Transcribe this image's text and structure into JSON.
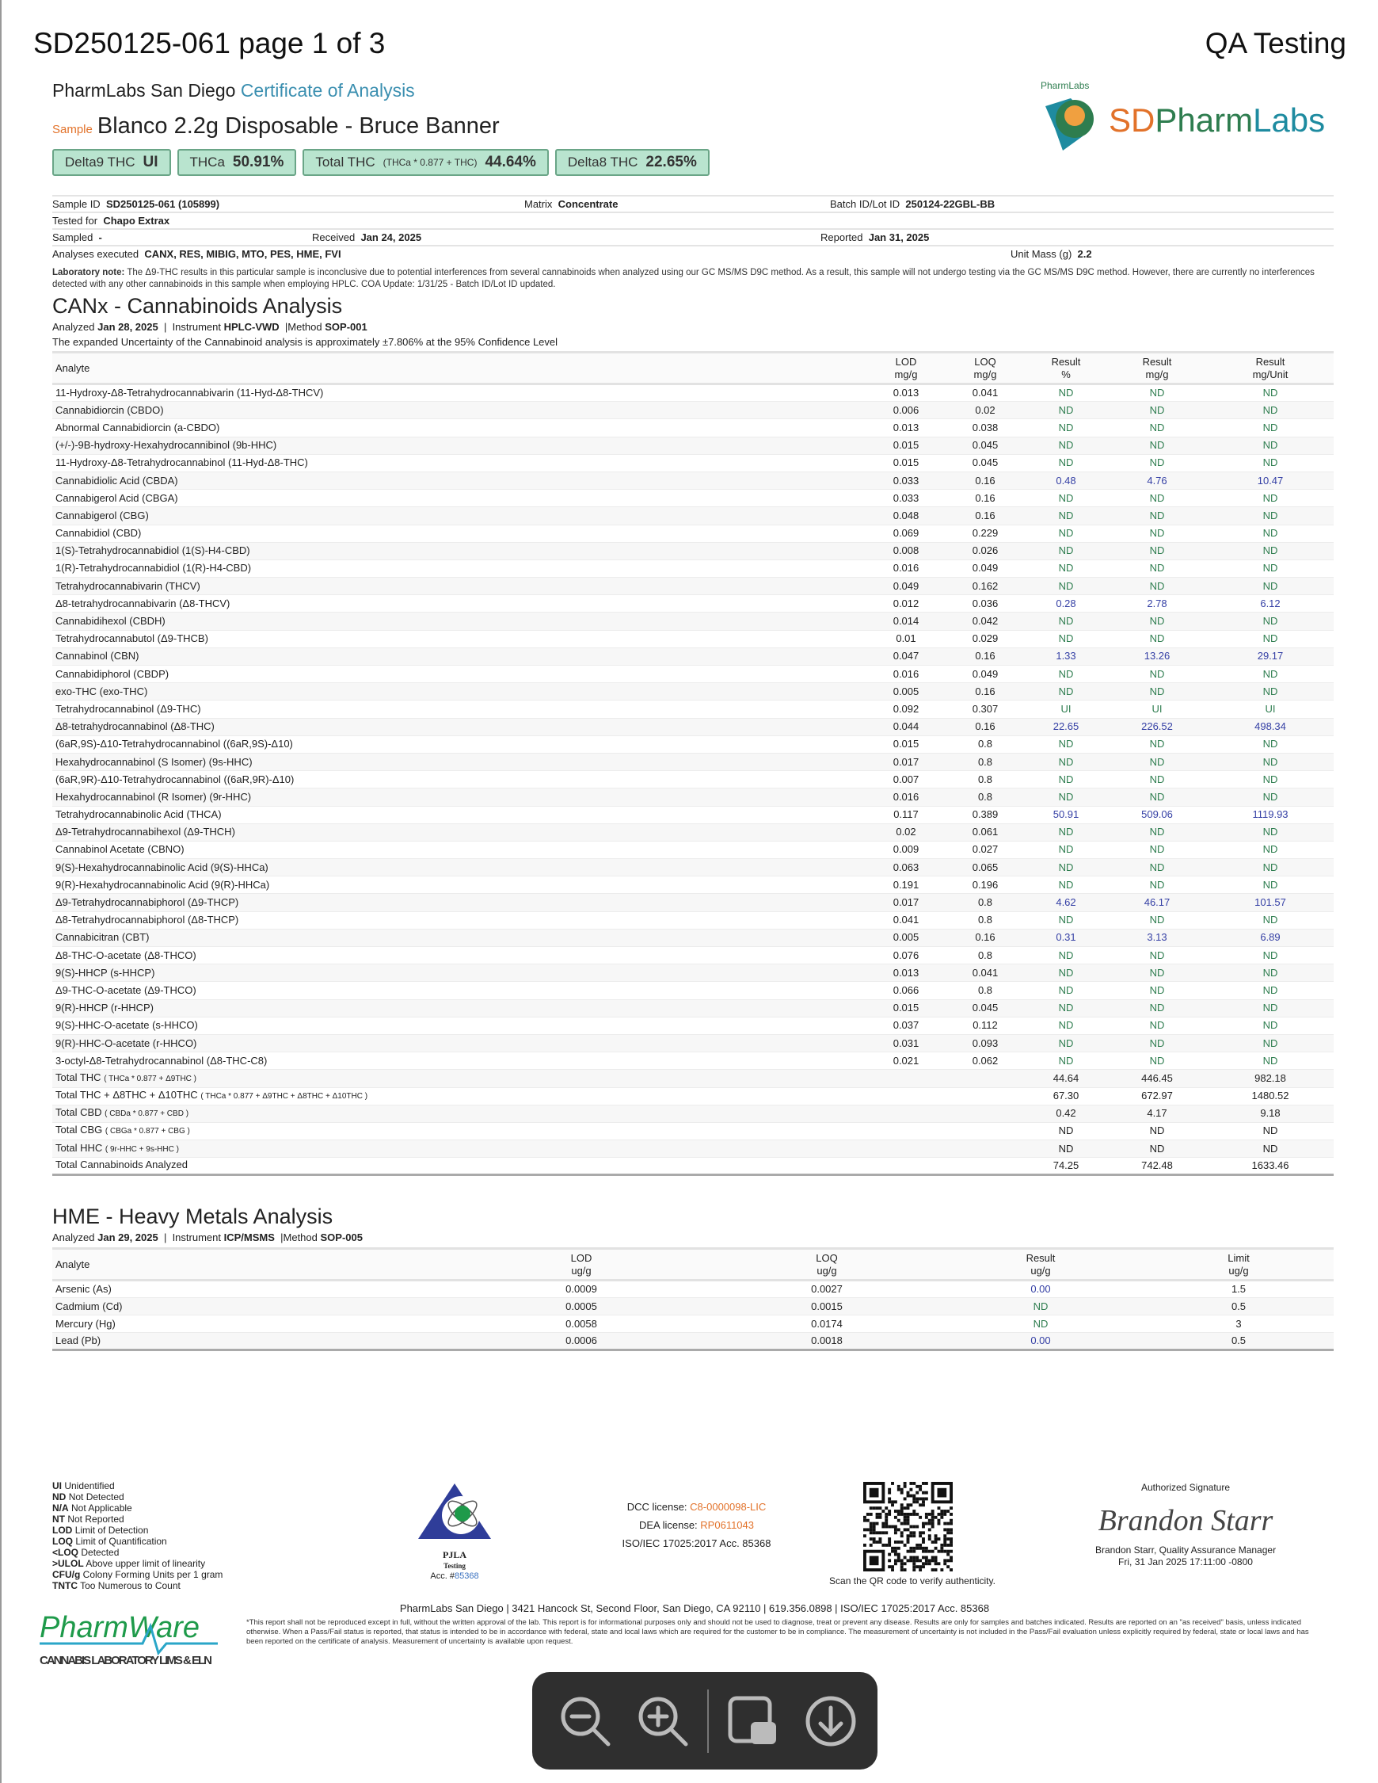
{
  "header": {
    "title": "SD250125-061 page 1 of 3",
    "right": "QA Testing"
  },
  "lab": {
    "name": "PharmLabs San Diego",
    "doc": "Certificate of Analysis",
    "logo_text": "SDPharmLabs",
    "logo_arc": "PharmLabs"
  },
  "sample": {
    "label": "Sample",
    "name": "Blanco 2.2g Disposable - Bruce Banner"
  },
  "badges": [
    {
      "label": "Delta9 THC",
      "formula": "",
      "value": "UI"
    },
    {
      "label": "THCa",
      "formula": "",
      "value": "50.91%"
    },
    {
      "label": "Total THC",
      "formula": "(THCa * 0.877 + THC)",
      "value": "44.64%"
    },
    {
      "label": "Delta8 THC",
      "formula": "",
      "value": "22.65%"
    }
  ],
  "info": {
    "sample_id_label": "Sample ID",
    "sample_id": "SD250125-061 (105899)",
    "matrix_label": "Matrix",
    "matrix": "Concentrate",
    "batch_label": "Batch ID/Lot ID",
    "batch": "250124-22GBL-BB",
    "tested_for_label": "Tested for",
    "tested_for": "Chapo Extrax",
    "sampled_label": "Sampled",
    "sampled": "-",
    "received_label": "Received",
    "received": "Jan 24, 2025",
    "reported_label": "Reported",
    "reported": "Jan 31, 2025",
    "analyses_label": "Analyses executed",
    "analyses": "CANX, RES, MIBIG, MTO, PES, HME, FVI",
    "unit_mass_label": "Unit Mass (g)",
    "unit_mass": "2.2"
  },
  "note": {
    "label": "Laboratory note:",
    "text": "The Δ9-THC results in this particular sample is inconclusive due to potential interferences from several cannabinoids when analyzed using our GC MS/MS D9C method. As a result, this sample will not undergo testing via the GC MS/MS D9C method. However, there are currently no interferences detected with any other cannabinoids in this sample when employing HPLC. COA Update: 1/31/25 - Batch ID/Lot ID updated."
  },
  "canx": {
    "title": "CANx - Cannabinoids Analysis",
    "analyzed_label": "Analyzed",
    "analyzed": "Jan 28, 2025",
    "instrument_label": "Instrument",
    "instrument": "HPLC-VWD",
    "method_label": "Method",
    "method": "SOP-001",
    "uncertainty": "The expanded Uncertainty of the Cannabinoid analysis is approximately ±7.806% at the 95% Confidence Level",
    "columns": [
      "Analyte",
      "LOD\nmg/g",
      "LOQ\nmg/g",
      "Result\n%",
      "Result\nmg/g",
      "Result\nmg/Unit"
    ],
    "rows": [
      [
        "11-Hydroxy-Δ8-Tetrahydrocannabivarin (11-Hyd-Δ8-THCV)",
        "0.013",
        "0.041",
        "ND",
        "ND",
        "ND"
      ],
      [
        "Cannabidiorcin (CBDO)",
        "0.006",
        "0.02",
        "ND",
        "ND",
        "ND"
      ],
      [
        "Abnormal Cannabidiorcin (a-CBDO)",
        "0.013",
        "0.038",
        "ND",
        "ND",
        "ND"
      ],
      [
        "(+/-)-9B-hydroxy-Hexahydrocannibinol (9b-HHC)",
        "0.015",
        "0.045",
        "ND",
        "ND",
        "ND"
      ],
      [
        "11-Hydroxy-Δ8-Tetrahydrocannabinol (11-Hyd-Δ8-THC)",
        "0.015",
        "0.045",
        "ND",
        "ND",
        "ND"
      ],
      [
        "Cannabidiolic Acid (CBDA)",
        "0.033",
        "0.16",
        "0.48",
        "4.76",
        "10.47"
      ],
      [
        "Cannabigerol Acid (CBGA)",
        "0.033",
        "0.16",
        "ND",
        "ND",
        "ND"
      ],
      [
        "Cannabigerol (CBG)",
        "0.048",
        "0.16",
        "ND",
        "ND",
        "ND"
      ],
      [
        "Cannabidiol (CBD)",
        "0.069",
        "0.229",
        "ND",
        "ND",
        "ND"
      ],
      [
        "1(S)-Tetrahydrocannabidiol (1(S)-H4-CBD)",
        "0.008",
        "0.026",
        "ND",
        "ND",
        "ND"
      ],
      [
        "1(R)-Tetrahydrocannabidiol (1(R)-H4-CBD)",
        "0.016",
        "0.049",
        "ND",
        "ND",
        "ND"
      ],
      [
        "Tetrahydrocannabivarin (THCV)",
        "0.049",
        "0.162",
        "ND",
        "ND",
        "ND"
      ],
      [
        "Δ8-tetrahydrocannabivarin (Δ8-THCV)",
        "0.012",
        "0.036",
        "0.28",
        "2.78",
        "6.12"
      ],
      [
        "Cannabidihexol (CBDH)",
        "0.014",
        "0.042",
        "ND",
        "ND",
        "ND"
      ],
      [
        "Tetrahydrocannabutol (Δ9-THCB)",
        "0.01",
        "0.029",
        "ND",
        "ND",
        "ND"
      ],
      [
        "Cannabinol (CBN)",
        "0.047",
        "0.16",
        "1.33",
        "13.26",
        "29.17"
      ],
      [
        "Cannabidiphorol (CBDP)",
        "0.016",
        "0.049",
        "ND",
        "ND",
        "ND"
      ],
      [
        "exo-THC (exo-THC)",
        "0.005",
        "0.16",
        "ND",
        "ND",
        "ND"
      ],
      [
        "Tetrahydrocannabinol (Δ9-THC)",
        "0.092",
        "0.307",
        "UI",
        "UI",
        "UI"
      ],
      [
        "Δ8-tetrahydrocannabinol (Δ8-THC)",
        "0.044",
        "0.16",
        "22.65",
        "226.52",
        "498.34"
      ],
      [
        "(6aR,9S)-Δ10-Tetrahydrocannabinol ((6aR,9S)-Δ10)",
        "0.015",
        "0.8",
        "ND",
        "ND",
        "ND"
      ],
      [
        "Hexahydrocannabinol (S Isomer) (9s-HHC)",
        "0.017",
        "0.8",
        "ND",
        "ND",
        "ND"
      ],
      [
        "(6aR,9R)-Δ10-Tetrahydrocannabinol ((6aR,9R)-Δ10)",
        "0.007",
        "0.8",
        "ND",
        "ND",
        "ND"
      ],
      [
        "Hexahydrocannabinol (R Isomer) (9r-HHC)",
        "0.016",
        "0.8",
        "ND",
        "ND",
        "ND"
      ],
      [
        "Tetrahydrocannabinolic Acid (THCA)",
        "0.117",
        "0.389",
        "50.91",
        "509.06",
        "1119.93"
      ],
      [
        "Δ9-Tetrahydrocannabihexol (Δ9-THCH)",
        "0.02",
        "0.061",
        "ND",
        "ND",
        "ND"
      ],
      [
        "Cannabinol Acetate (CBNO)",
        "0.009",
        "0.027",
        "ND",
        "ND",
        "ND"
      ],
      [
        "9(S)-Hexahydrocannabinolic Acid (9(S)-HHCa)",
        "0.063",
        "0.065",
        "ND",
        "ND",
        "ND"
      ],
      [
        "9(R)-Hexahydrocannabinolic Acid (9(R)-HHCa)",
        "0.191",
        "0.196",
        "ND",
        "ND",
        "ND"
      ],
      [
        "Δ9-Tetrahydrocannabiphorol (Δ9-THCP)",
        "0.017",
        "0.8",
        "4.62",
        "46.17",
        "101.57"
      ],
      [
        "Δ8-Tetrahydrocannabiphorol (Δ8-THCP)",
        "0.041",
        "0.8",
        "ND",
        "ND",
        "ND"
      ],
      [
        "Cannabicitran (CBT)",
        "0.005",
        "0.16",
        "0.31",
        "3.13",
        "6.89"
      ],
      [
        "Δ8-THC-O-acetate (Δ8-THCO)",
        "0.076",
        "0.8",
        "ND",
        "ND",
        "ND"
      ],
      [
        "9(S)-HHCP (s-HHCP)",
        "0.013",
        "0.041",
        "ND",
        "ND",
        "ND"
      ],
      [
        "Δ9-THC-O-acetate (Δ9-THCO)",
        "0.066",
        "0.8",
        "ND",
        "ND",
        "ND"
      ],
      [
        "9(R)-HHCP (r-HHCP)",
        "0.015",
        "0.045",
        "ND",
        "ND",
        "ND"
      ],
      [
        "9(S)-HHC-O-acetate (s-HHCO)",
        "0.037",
        "0.112",
        "ND",
        "ND",
        "ND"
      ],
      [
        "9(R)-HHC-O-acetate (r-HHCO)",
        "0.031",
        "0.093",
        "ND",
        "ND",
        "ND"
      ],
      [
        "3-octyl-Δ8-Tetrahydrocannabinol (Δ8-THC-C8)",
        "0.021",
        "0.062",
        "ND",
        "ND",
        "ND"
      ]
    ],
    "totals": [
      [
        "Total THC",
        "( THCa * 0.877 + Δ9THC )",
        "44.64",
        "446.45",
        "982.18"
      ],
      [
        "Total THC + Δ8THC + Δ10THC",
        "( THCa * 0.877 + Δ9THC + Δ8THC + Δ10THC )",
        "67.30",
        "672.97",
        "1480.52"
      ],
      [
        "Total CBD",
        "( CBDa * 0.877 + CBD )",
        "0.42",
        "4.17",
        "9.18"
      ],
      [
        "Total CBG",
        "( CBGa * 0.877 + CBG )",
        "ND",
        "ND",
        "ND"
      ],
      [
        "Total HHC",
        "( 9r-HHC + 9s-HHC )",
        "ND",
        "ND",
        "ND"
      ],
      [
        "Total Cannabinoids Analyzed",
        "",
        "74.25",
        "742.48",
        "1633.46"
      ]
    ]
  },
  "hme": {
    "title": "HME - Heavy Metals Analysis",
    "analyzed_label": "Analyzed",
    "analyzed": "Jan 29, 2025",
    "instrument_label": "Instrument",
    "instrument": "ICP/MSMS",
    "method_label": "Method",
    "method": "SOP-005",
    "columns": [
      "Analyte",
      "LOD\nug/g",
      "LOQ\nug/g",
      "Result\nug/g",
      "Limit\nug/g"
    ],
    "rows": [
      [
        "Arsenic (As)",
        "0.0009",
        "0.0027",
        "0.00",
        "1.5"
      ],
      [
        "Cadmium (Cd)",
        "0.0005",
        "0.0015",
        "ND",
        "0.5"
      ],
      [
        "Mercury (Hg)",
        "0.0058",
        "0.0174",
        "ND",
        "3"
      ],
      [
        "Lead (Pb)",
        "0.0006",
        "0.0018",
        "0.00",
        "0.5"
      ]
    ]
  },
  "legend": [
    [
      "UI",
      "Unidentified"
    ],
    [
      "ND",
      "Not Detected"
    ],
    [
      "N/A",
      "Not Applicable"
    ],
    [
      "NT",
      "Not Reported"
    ],
    [
      "LOD",
      "Limit of Detection"
    ],
    [
      "LOQ",
      "Limit of Quantification"
    ],
    [
      "<LOQ",
      "Detected"
    ],
    [
      ">ULOL",
      "Above upper limit of linearity"
    ],
    [
      "CFU/g",
      "Colony Forming Units per 1 gram"
    ],
    [
      "TNTC",
      "Too Numerous to Count"
    ]
  ],
  "pjla": {
    "name": "PJLA",
    "sub": "Testing",
    "acc_label": "Acc. #",
    "acc": "85368"
  },
  "licenses": {
    "dcc_label": "DCC license:",
    "dcc": "C8-0000098-LIC",
    "dea_label": "DEA license:",
    "dea": "RP0611043",
    "iso": "ISO/IEC 17025:2017 Acc. 85368"
  },
  "qr": {
    "caption": "Scan the QR code to verify authenticity."
  },
  "signature": {
    "label": "Authorized Signature",
    "script": "Brandon Starr",
    "name": "Brandon Starr, Quality Assurance Manager",
    "date": "Fri, 31 Jan 2025 17:11:00 -0800"
  },
  "address": "PharmLabs San Diego | 3421 Hancock St, Second Floor, San Diego, CA 92110 | 619.356.0898 | ISO/IEC 17025:2017 Acc. 85368",
  "disclaimer": "*This report shall not be reproduced except in full, without the written approval of the lab. This report is for informational purposes only and should not be used to diagnose, treat or prevent any disease. Results are only for samples and batches indicated. Results are reported on an \"as received\" basis, unless indicated otherwise. When a Pass/Fail status is reported, that status is intended to be in accordance with federal, state and local laws which are required for the customer to be in compliance. The measurement of uncertainty is not included in the Pass/Fail evaluation unless explicitly required by federal, state or local laws and has been reported on the certificate of analysis. Measurement of uncertainty is available upon request.",
  "pharmware": {
    "name": "PharmWare",
    "tagline": "CANNABIS LABORATORY LIMS & ELN"
  },
  "colors": {
    "nd": "#2e7d4f",
    "value": "#3540a5",
    "badge_bg": "#b9e4cf",
    "accent_orange": "#e2722a",
    "accent_blue": "#3b8fb0"
  },
  "toolbar": {
    "buttons": [
      "zoom-out",
      "zoom-in",
      "open-in-app",
      "download"
    ]
  }
}
